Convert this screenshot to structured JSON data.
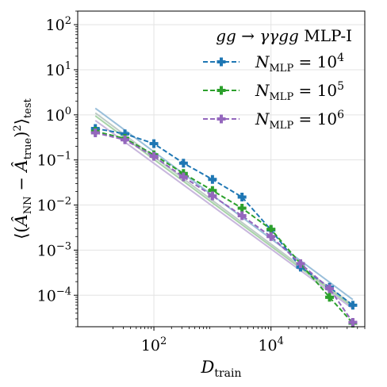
{
  "chart_data": {
    "type": "line",
    "title": "gg → γγgg MLP-I",
    "xlabel": "D_train",
    "ylabel": "⟨(Â_NN − Â_true)²⟩_test",
    "xscale": "log",
    "yscale": "log",
    "xlim": [
      5,
      400000
    ],
    "ylim": [
      2e-05,
      200
    ],
    "x_ticks": [
      {
        "base": "10",
        "exp": "2",
        "value": 100
      },
      {
        "base": "10",
        "exp": "4",
        "value": 10000
      }
    ],
    "y_ticks": [
      {
        "base": "10",
        "exp": "2",
        "value": 100
      },
      {
        "base": "10",
        "exp": "1",
        "value": 10
      },
      {
        "base": "10",
        "exp": "0",
        "value": 1
      },
      {
        "base": "10",
        "exp": "−1",
        "value": 0.1
      },
      {
        "base": "10",
        "exp": "−2",
        "value": 0.01
      },
      {
        "base": "10",
        "exp": "−3",
        "value": 0.001
      },
      {
        "base": "10",
        "exp": "−4",
        "value": 0.0001
      }
    ],
    "grid": true,
    "legend_position": "top-right",
    "x": [
      10,
      32,
      100,
      320,
      1000,
      3200,
      10000,
      32000,
      100000,
      250000
    ],
    "series": [
      {
        "name": "N_MLP = 10^4",
        "legend": {
          "var": "N",
          "sub": "MLP",
          "rhs": "= 10",
          "exp": "4"
        },
        "color": "#1f77b4",
        "values": [
          0.5,
          0.38,
          0.23,
          0.085,
          0.037,
          0.015,
          0.0028,
          0.00042,
          0.00015,
          6e-05
        ]
      },
      {
        "name": "N_MLP = 10^5",
        "legend": {
          "var": "N",
          "sub": "MLP",
          "rhs": "= 10",
          "exp": "5"
        },
        "color": "#2ca02c",
        "values": [
          0.43,
          0.3,
          0.13,
          0.05,
          0.021,
          0.0085,
          0.0029,
          0.0005,
          9e-05,
          2.4e-05
        ]
      },
      {
        "name": "N_MLP = 10^6",
        "legend": {
          "var": "N",
          "sub": "MLP",
          "rhs": "= 10",
          "exp": "6"
        },
        "color": "#9467bd",
        "values": [
          0.4,
          0.28,
          0.12,
          0.042,
          0.016,
          0.0058,
          0.002,
          0.0005,
          0.00014,
          2.5e-05
        ]
      }
    ],
    "fit_lines": [
      {
        "color": "#8fb8d6",
        "x": [
          10,
          250000
        ],
        "y": [
          1.4,
          8e-05
        ]
      },
      {
        "color": "#9fcf9f",
        "x": [
          10,
          250000
        ],
        "y": [
          0.95,
          5.5e-05
        ]
      },
      {
        "color": "#c2afd9",
        "x": [
          10,
          250000
        ],
        "y": [
          0.75,
          5e-05
        ]
      },
      {
        "color": "#b7c7c0",
        "x": [
          10,
          250000
        ],
        "y": [
          1.1,
          6e-05
        ]
      }
    ]
  }
}
